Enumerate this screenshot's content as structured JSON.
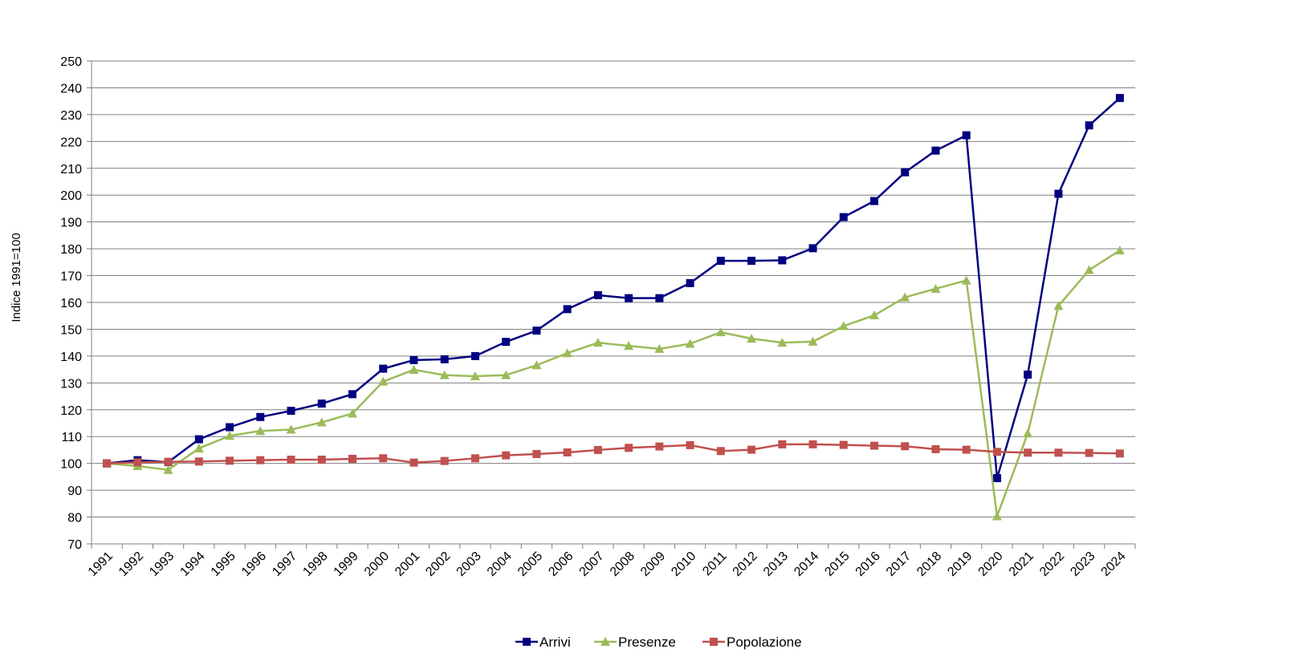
{
  "chart_data": {
    "type": "line",
    "title": "",
    "xlabel": "",
    "ylabel": "Indice 1991=100",
    "ylim": [
      70,
      250
    ],
    "ytick_step": 10,
    "grid": true,
    "legend_position": "bottom",
    "categories": [
      "1991",
      "1992",
      "1993",
      "1994",
      "1995",
      "1996",
      "1997",
      "1998",
      "1999",
      "2000",
      "2001",
      "2002",
      "2003",
      "2004",
      "2005",
      "2006",
      "2007",
      "2008",
      "2009",
      "2010",
      "2011",
      "2012",
      "2013",
      "2014",
      "2015",
      "2016",
      "2017",
      "2018",
      "2019",
      "2020",
      "2021",
      "2022",
      "2023",
      "2024"
    ],
    "series": [
      {
        "name": "Arrivi",
        "color": "#000080",
        "marker": "square",
        "values": [
          100,
          101.2,
          100.5,
          109,
          113.5,
          117.3,
          119.6,
          122.3,
          125.8,
          135.3,
          138.5,
          138.8,
          140,
          145.3,
          149.5,
          157.5,
          162.7,
          161.6,
          161.6,
          167.2,
          175.5,
          175.5,
          175.7,
          180.2,
          191.8,
          197.8,
          208.5,
          216.6,
          222.3,
          94.5,
          133.1,
          200.5,
          226,
          236.2
        ]
      },
      {
        "name": "Presenze",
        "color": "#9BBB59",
        "marker": "triangle",
        "values": [
          100,
          99,
          97.6,
          105.6,
          110.3,
          112.1,
          112.6,
          115.3,
          118.6,
          130.5,
          134.9,
          132.9,
          132.5,
          132.9,
          136.6,
          141.1,
          145,
          143.8,
          142.7,
          144.6,
          148.9,
          146.5,
          145,
          145.4,
          151.2,
          155.2,
          161.9,
          165.1,
          168.2,
          80.3,
          111.2,
          158.7,
          172.1,
          179.4
        ]
      },
      {
        "name": "Popolazione",
        "color": "#C0504D",
        "marker": "square",
        "values": [
          100,
          100.4,
          100.6,
          100.7,
          101,
          101.2,
          101.4,
          101.4,
          101.7,
          101.9,
          100.3,
          100.9,
          101.9,
          103,
          103.5,
          104.1,
          105,
          105.8,
          106.3,
          106.8,
          104.6,
          105.1,
          107.1,
          107.1,
          106.9,
          106.6,
          106.4,
          105.3,
          105.1,
          104.3,
          104,
          104,
          103.9,
          103.7
        ]
      }
    ]
  }
}
